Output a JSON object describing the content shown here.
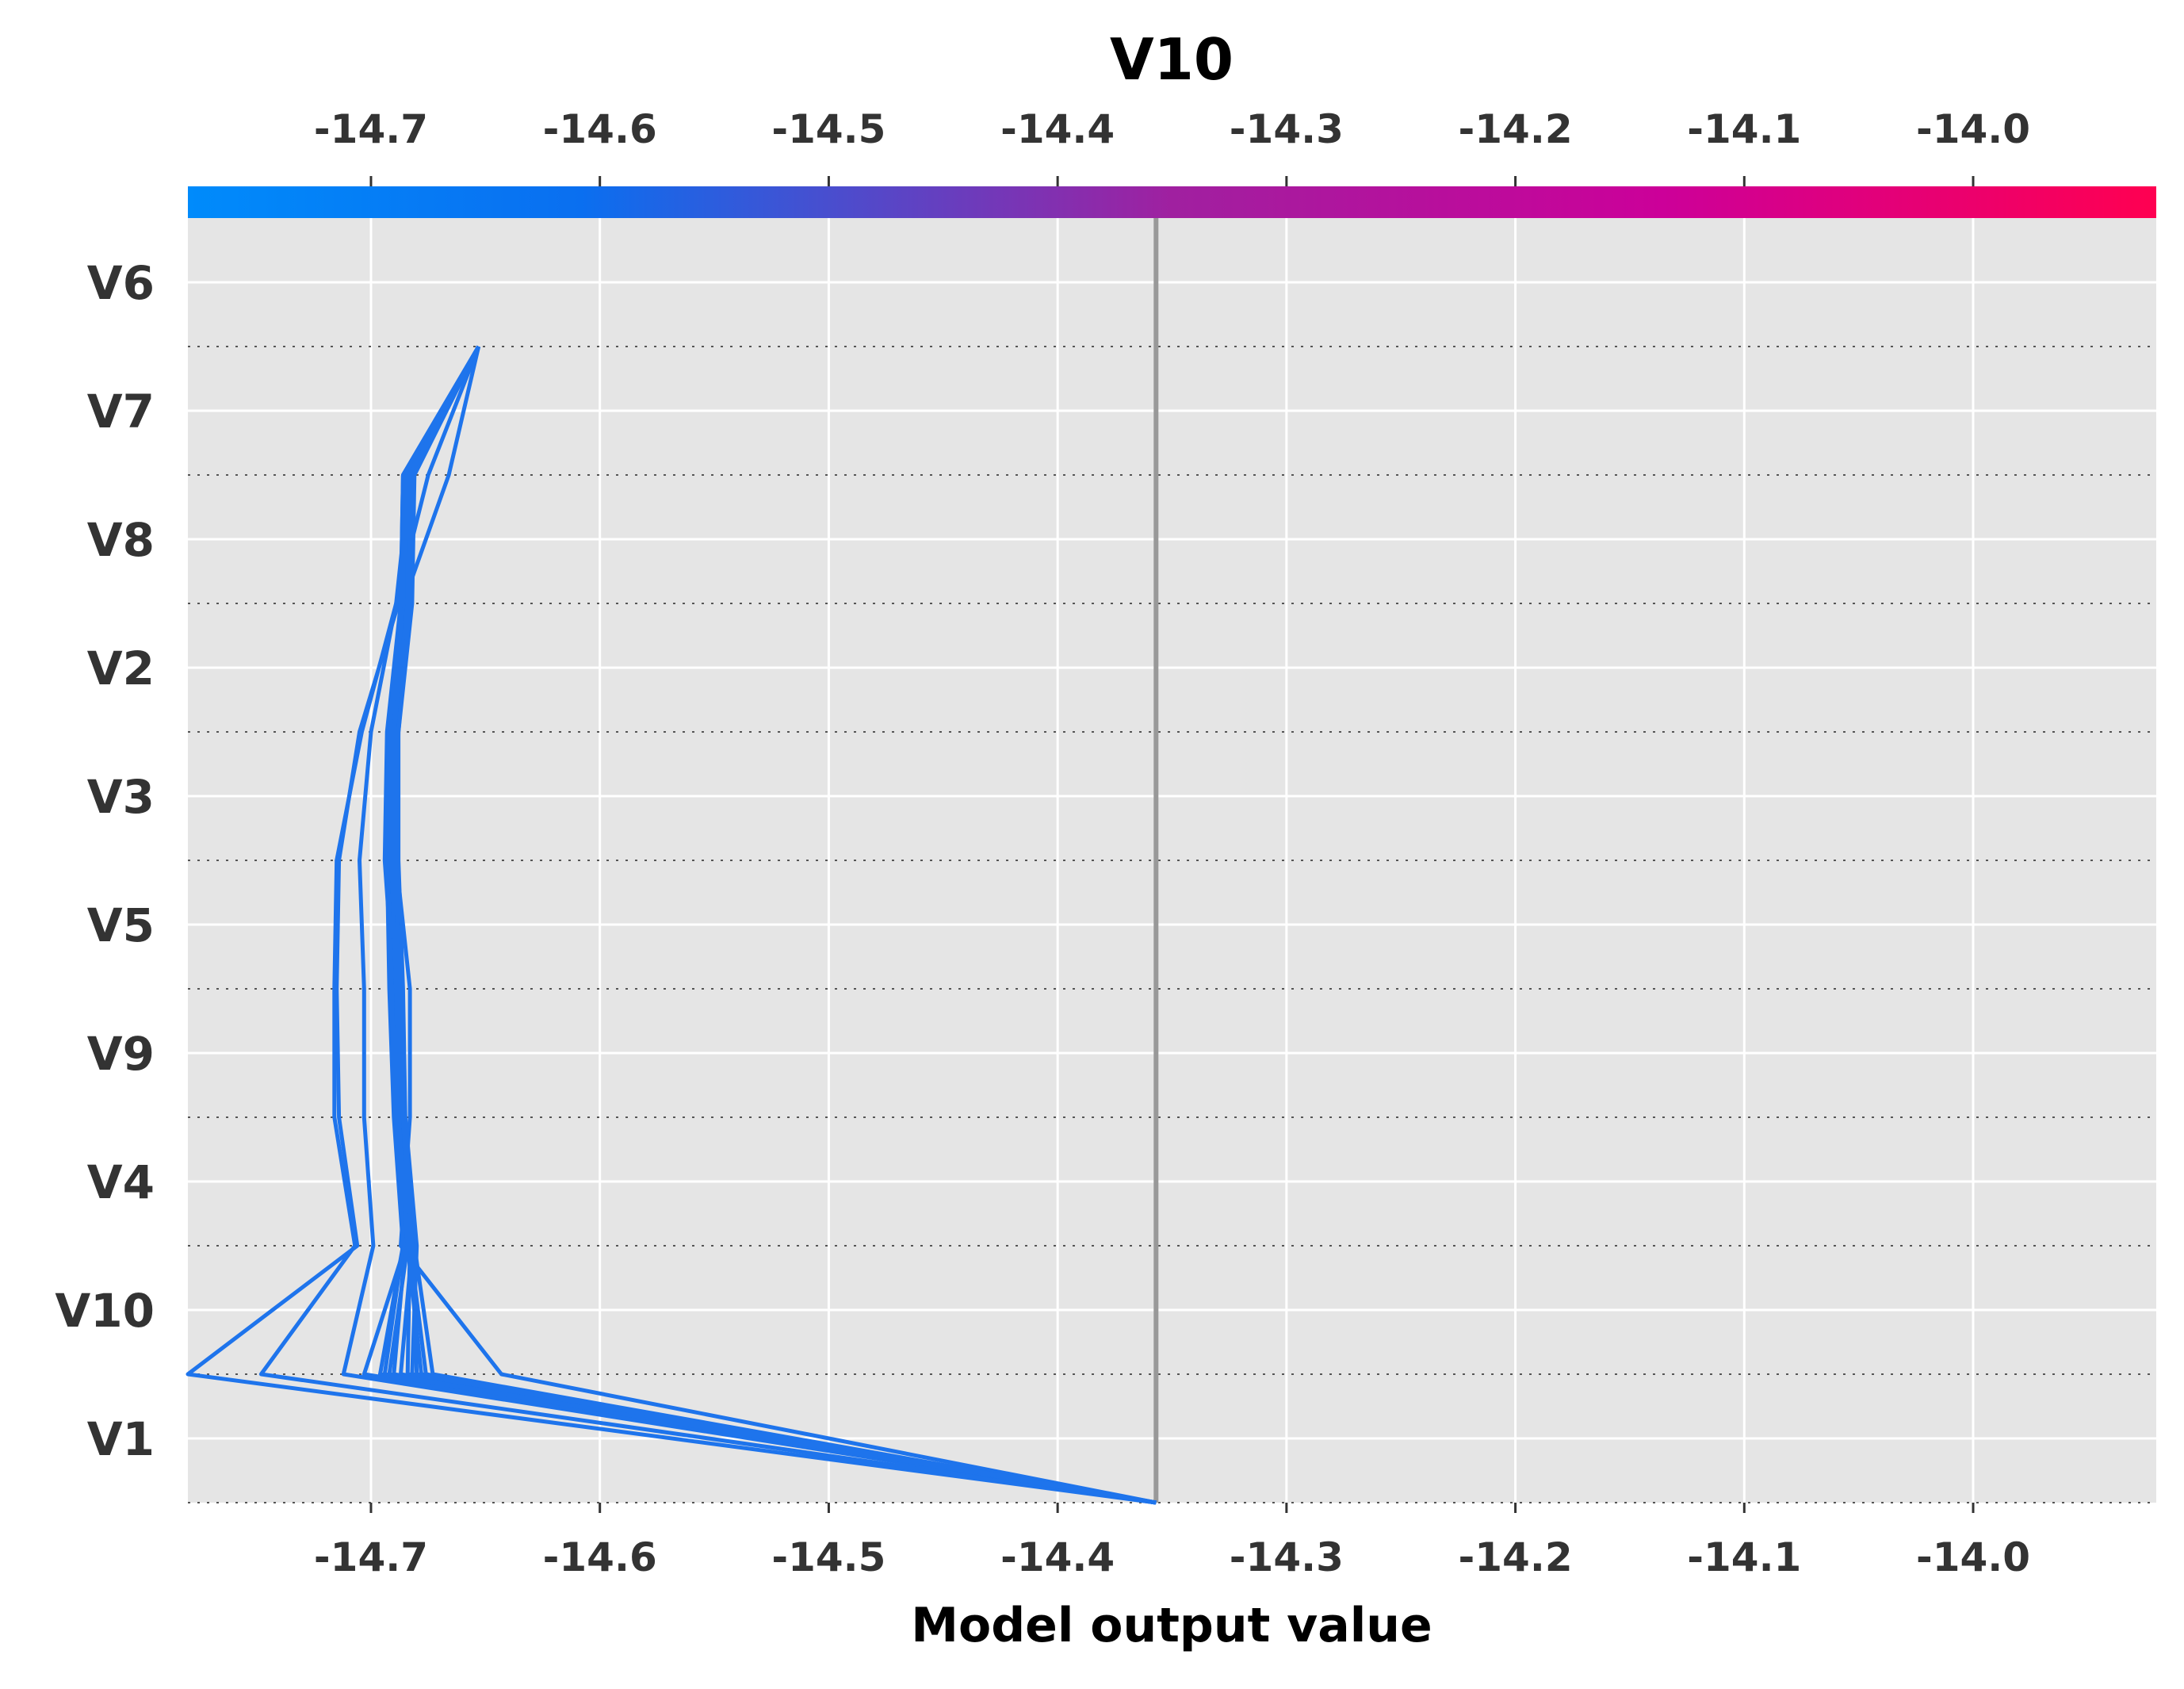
{
  "chart_data": {
    "type": "line",
    "subtype": "shap-decision-plot",
    "title": "V10",
    "xlabel": "Model output value",
    "ylabel": "",
    "xlim": [
      -14.78,
      -13.92
    ],
    "x_ticks": [
      -14.7,
      -14.6,
      -14.5,
      -14.4,
      -14.3,
      -14.2,
      -14.1,
      -14.0
    ],
    "x_tick_labels": [
      "-14.7",
      "-14.6",
      "-14.5",
      "-14.4",
      "-14.3",
      "-14.2",
      "-14.1",
      "-14.0"
    ],
    "features_top_to_bottom": [
      "V6",
      "V7",
      "V8",
      "V2",
      "V3",
      "V5",
      "V9",
      "V4",
      "V10",
      "V1"
    ],
    "base_value": -14.357,
    "grid": true,
    "colorbar": {
      "position": "top",
      "from": "#008bfb",
      "mid": "#a020a0",
      "to": "#ff0051"
    },
    "line_color": "#1e74ec",
    "series": [
      {
        "values": [
          -14.357,
          -14.78,
          -14.706,
          -14.714,
          -14.715,
          -14.714,
          -14.705,
          -14.688,
          -14.682,
          -14.653
        ]
      },
      {
        "values": [
          -14.357,
          -14.748,
          -14.707,
          -14.716,
          -14.716,
          -14.715,
          -14.704,
          -14.689,
          -14.683,
          -14.653
        ]
      },
      {
        "values": [
          -14.357,
          -14.712,
          -14.699,
          -14.703,
          -14.703,
          -14.705,
          -14.7,
          -14.689,
          -14.675,
          -14.653
        ]
      },
      {
        "values": [
          -14.357,
          -14.643,
          -14.687,
          -14.683,
          -14.683,
          -14.689,
          -14.69,
          -14.686,
          -14.666,
          -14.653
        ]
      },
      {
        "values": [
          -14.357,
          -14.703,
          -14.685,
          -14.687,
          -14.69,
          -14.694,
          -14.693,
          -14.687,
          -14.686,
          -14.653
        ]
      },
      {
        "values": [
          -14.357,
          -14.696,
          -14.686,
          -14.69,
          -14.692,
          -14.693,
          -14.692,
          -14.686,
          -14.685,
          -14.653
        ]
      },
      {
        "values": [
          -14.357,
          -14.69,
          -14.685,
          -14.689,
          -14.69,
          -14.692,
          -14.691,
          -14.685,
          -14.684,
          -14.653
        ]
      },
      {
        "values": [
          -14.357,
          -14.684,
          -14.683,
          -14.688,
          -14.689,
          -14.691,
          -14.69,
          -14.684,
          -14.683,
          -14.653
        ]
      },
      {
        "values": [
          -14.357,
          -14.678,
          -14.684,
          -14.687,
          -14.688,
          -14.69,
          -14.69,
          -14.685,
          -14.684,
          -14.653
        ]
      },
      {
        "values": [
          -14.357,
          -14.673,
          -14.681,
          -14.686,
          -14.687,
          -14.689,
          -14.689,
          -14.683,
          -14.682,
          -14.653
        ]
      },
      {
        "values": [
          -14.357,
          -14.687,
          -14.682,
          -14.687,
          -14.688,
          -14.69,
          -14.689,
          -14.684,
          -14.684,
          -14.653
        ]
      },
      {
        "values": [
          -14.357,
          -14.692,
          -14.684,
          -14.688,
          -14.689,
          -14.691,
          -14.691,
          -14.686,
          -14.685,
          -14.653
        ]
      },
      {
        "values": [
          -14.357,
          -14.682,
          -14.68,
          -14.685,
          -14.686,
          -14.688,
          -14.688,
          -14.682,
          -14.681,
          -14.653
        ]
      },
      {
        "values": [
          -14.357,
          -14.676,
          -14.683,
          -14.686,
          -14.687,
          -14.69,
          -14.69,
          -14.684,
          -14.682,
          -14.653
        ]
      },
      {
        "values": [
          -14.357,
          -14.694,
          -14.686,
          -14.689,
          -14.691,
          -14.693,
          -14.692,
          -14.687,
          -14.686,
          -14.653
        ]
      },
      {
        "values": [
          -14.357,
          -14.68,
          -14.682,
          -14.686,
          -14.688,
          -14.689,
          -14.688,
          -14.683,
          -14.683,
          -14.653
        ]
      }
    ]
  }
}
